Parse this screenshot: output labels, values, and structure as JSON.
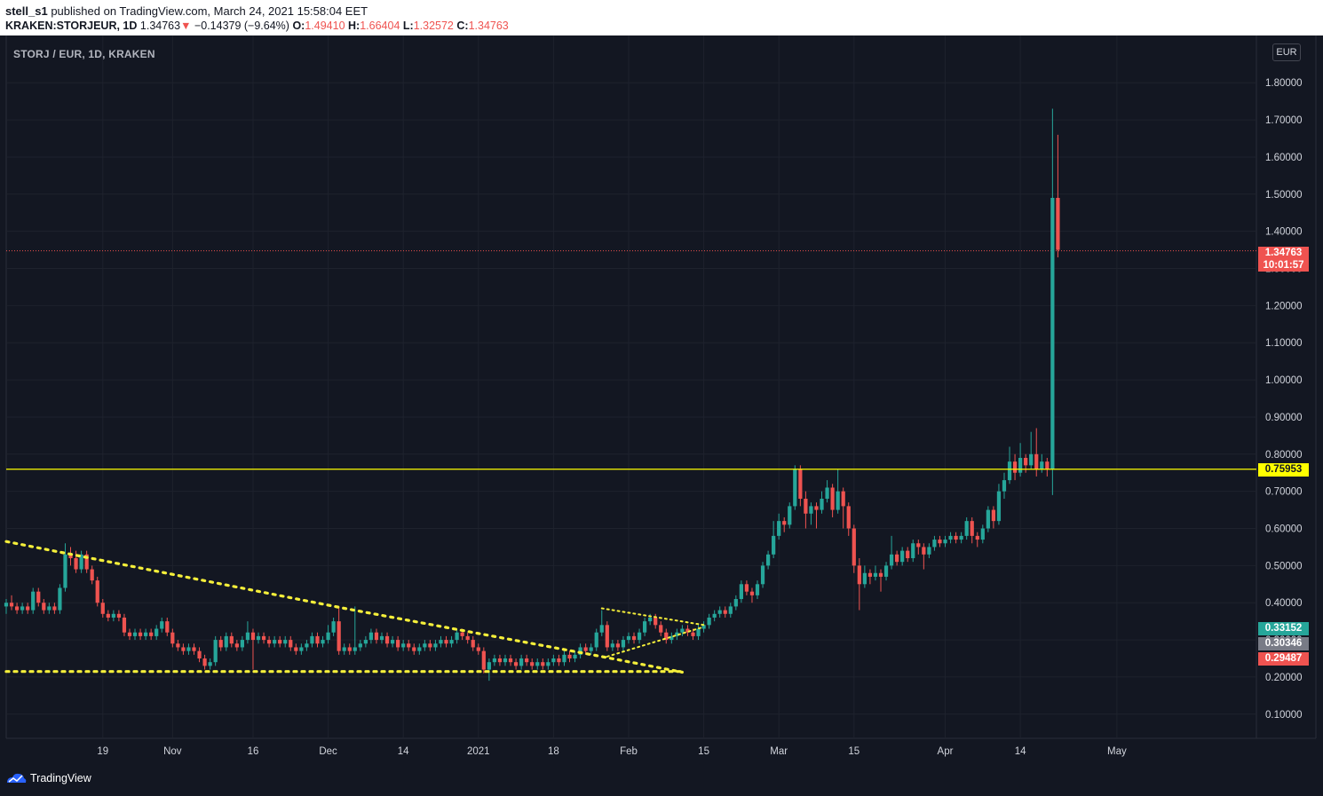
{
  "header": {
    "publisher": "stell_s1",
    "published_text": "published on TradingView.com, March 24, 2021 15:58:04 EET",
    "symbol": "KRAKEN:STORJEUR, 1D",
    "last": "1.34763",
    "change": "−0.14379 (−9.64%)",
    "o_label": "O:",
    "o_value": "1.49410",
    "h_label": "H:",
    "h_value": "1.66404",
    "l_label": "L:",
    "l_value": "1.32572",
    "c_label": "C:",
    "c_value": "1.34763"
  },
  "chart_title": "STORJ / EUR, 1D, KRAKEN",
  "currency": "EUR",
  "badges": {
    "last_price": "1.34763",
    "countdown": "10:01:57",
    "level": "0.75953",
    "price_a": "0.33152",
    "price_b": "0.30346",
    "price_c": "0.29487"
  },
  "footer": {
    "brand": "TradingView"
  },
  "colors": {
    "up": "#26a69a",
    "down": "#ef5350",
    "level": "#ffff00",
    "trendline": "#f5ef3a",
    "background": "#131722"
  },
  "chart_data": {
    "type": "candlestick",
    "y_axis": {
      "ticks": [
        "1.80000",
        "1.70000",
        "1.60000",
        "1.50000",
        "1.40000",
        "1.30000",
        "1.20000",
        "1.10000",
        "1.00000",
        "0.90000",
        "0.80000",
        "0.70000",
        "0.60000",
        "0.50000",
        "0.40000",
        "0.30000",
        "0.20000",
        "0.10000"
      ],
      "tick_values": [
        1.8,
        1.7,
        1.6,
        1.5,
        1.4,
        1.3,
        1.2,
        1.1,
        1.0,
        0.9,
        0.8,
        0.7,
        0.6,
        0.5,
        0.4,
        0.3,
        0.2,
        0.1
      ],
      "range": [
        0.035,
        1.92
      ]
    },
    "x_axis": {
      "labels": [
        "19",
        "Nov",
        "16",
        "Dec",
        "14",
        "2021",
        "18",
        "Feb",
        "15",
        "Mar",
        "15",
        "Apr",
        "14",
        "May"
      ],
      "label_day": [
        14,
        27,
        42,
        56,
        70,
        84,
        98,
        112,
        126,
        140,
        154,
        171,
        185,
        203
      ],
      "range_days": [
        -4,
        229
      ]
    },
    "horizontal_level": 0.75953,
    "current_price": 1.34763,
    "candles": [
      [
        -4,
        0.39,
        0.4,
        0.41,
        0.37
      ],
      [
        -3,
        0.4,
        0.39,
        0.42,
        0.38
      ],
      [
        -2,
        0.39,
        0.38,
        0.4,
        0.37
      ],
      [
        -1,
        0.38,
        0.39,
        0.4,
        0.37
      ],
      [
        0,
        0.39,
        0.38,
        0.4,
        0.37
      ],
      [
        1,
        0.38,
        0.43,
        0.44,
        0.37
      ],
      [
        2,
        0.43,
        0.4,
        0.44,
        0.39
      ],
      [
        3,
        0.4,
        0.38,
        0.41,
        0.37
      ],
      [
        4,
        0.38,
        0.39,
        0.4,
        0.37
      ],
      [
        5,
        0.39,
        0.38,
        0.4,
        0.37
      ],
      [
        6,
        0.38,
        0.44,
        0.45,
        0.37
      ],
      [
        7,
        0.44,
        0.53,
        0.56,
        0.43
      ],
      [
        8,
        0.53,
        0.52,
        0.55,
        0.5
      ],
      [
        9,
        0.52,
        0.49,
        0.54,
        0.48
      ],
      [
        10,
        0.49,
        0.53,
        0.54,
        0.48
      ],
      [
        11,
        0.53,
        0.49,
        0.54,
        0.48
      ],
      [
        12,
        0.49,
        0.46,
        0.5,
        0.45
      ],
      [
        13,
        0.46,
        0.4,
        0.47,
        0.39
      ],
      [
        14,
        0.4,
        0.37,
        0.41,
        0.36
      ],
      [
        15,
        0.37,
        0.36,
        0.38,
        0.35
      ],
      [
        16,
        0.36,
        0.37,
        0.38,
        0.35
      ],
      [
        17,
        0.37,
        0.36,
        0.38,
        0.35
      ],
      [
        18,
        0.36,
        0.32,
        0.37,
        0.31
      ],
      [
        19,
        0.32,
        0.31,
        0.33,
        0.3
      ],
      [
        20,
        0.31,
        0.32,
        0.33,
        0.3
      ],
      [
        21,
        0.32,
        0.31,
        0.33,
        0.3
      ],
      [
        22,
        0.31,
        0.32,
        0.33,
        0.3
      ],
      [
        23,
        0.32,
        0.31,
        0.33,
        0.3
      ],
      [
        24,
        0.31,
        0.33,
        0.34,
        0.3
      ],
      [
        25,
        0.33,
        0.35,
        0.36,
        0.32
      ],
      [
        26,
        0.35,
        0.32,
        0.36,
        0.31
      ],
      [
        27,
        0.32,
        0.29,
        0.33,
        0.28
      ],
      [
        28,
        0.29,
        0.28,
        0.3,
        0.27
      ],
      [
        29,
        0.28,
        0.27,
        0.29,
        0.26
      ],
      [
        30,
        0.27,
        0.28,
        0.29,
        0.26
      ],
      [
        31,
        0.28,
        0.27,
        0.29,
        0.26
      ],
      [
        32,
        0.27,
        0.25,
        0.28,
        0.24
      ],
      [
        33,
        0.25,
        0.23,
        0.26,
        0.22
      ],
      [
        34,
        0.23,
        0.24,
        0.25,
        0.22
      ],
      [
        35,
        0.24,
        0.3,
        0.31,
        0.23
      ],
      [
        36,
        0.3,
        0.28,
        0.31,
        0.27
      ],
      [
        37,
        0.28,
        0.31,
        0.32,
        0.27
      ],
      [
        38,
        0.31,
        0.29,
        0.32,
        0.28
      ],
      [
        39,
        0.29,
        0.28,
        0.3,
        0.27
      ],
      [
        40,
        0.28,
        0.3,
        0.31,
        0.27
      ],
      [
        41,
        0.3,
        0.32,
        0.35,
        0.29
      ],
      [
        42,
        0.32,
        0.3,
        0.33,
        0.22
      ],
      [
        43,
        0.3,
        0.31,
        0.32,
        0.29
      ],
      [
        44,
        0.31,
        0.3,
        0.32,
        0.29
      ],
      [
        45,
        0.3,
        0.29,
        0.31,
        0.28
      ],
      [
        46,
        0.29,
        0.3,
        0.31,
        0.28
      ],
      [
        47,
        0.3,
        0.29,
        0.31,
        0.28
      ],
      [
        48,
        0.29,
        0.3,
        0.31,
        0.28
      ],
      [
        49,
        0.3,
        0.28,
        0.31,
        0.27
      ],
      [
        50,
        0.28,
        0.27,
        0.29,
        0.26
      ],
      [
        51,
        0.27,
        0.28,
        0.29,
        0.26
      ],
      [
        52,
        0.28,
        0.29,
        0.3,
        0.27
      ],
      [
        53,
        0.29,
        0.31,
        0.32,
        0.28
      ],
      [
        54,
        0.31,
        0.29,
        0.32,
        0.28
      ],
      [
        55,
        0.29,
        0.3,
        0.31,
        0.28
      ],
      [
        56,
        0.3,
        0.32,
        0.34,
        0.29
      ],
      [
        57,
        0.32,
        0.35,
        0.36,
        0.31
      ],
      [
        58,
        0.35,
        0.27,
        0.39,
        0.26
      ],
      [
        59,
        0.27,
        0.28,
        0.29,
        0.26
      ],
      [
        60,
        0.28,
        0.27,
        0.29,
        0.26
      ],
      [
        61,
        0.27,
        0.28,
        0.39,
        0.26
      ],
      [
        62,
        0.28,
        0.29,
        0.3,
        0.27
      ],
      [
        63,
        0.29,
        0.3,
        0.31,
        0.28
      ],
      [
        64,
        0.3,
        0.32,
        0.33,
        0.29
      ],
      [
        65,
        0.32,
        0.3,
        0.33,
        0.29
      ],
      [
        66,
        0.3,
        0.31,
        0.32,
        0.29
      ],
      [
        67,
        0.31,
        0.29,
        0.32,
        0.28
      ],
      [
        68,
        0.29,
        0.3,
        0.31,
        0.28
      ],
      [
        69,
        0.3,
        0.28,
        0.31,
        0.27
      ],
      [
        70,
        0.28,
        0.29,
        0.3,
        0.27
      ],
      [
        71,
        0.29,
        0.28,
        0.3,
        0.27
      ],
      [
        72,
        0.28,
        0.27,
        0.29,
        0.26
      ],
      [
        73,
        0.27,
        0.28,
        0.29,
        0.26
      ],
      [
        74,
        0.28,
        0.29,
        0.3,
        0.27
      ],
      [
        75,
        0.29,
        0.28,
        0.3,
        0.27
      ],
      [
        76,
        0.28,
        0.29,
        0.3,
        0.27
      ],
      [
        77,
        0.29,
        0.3,
        0.31,
        0.28
      ],
      [
        78,
        0.3,
        0.29,
        0.31,
        0.28
      ],
      [
        79,
        0.29,
        0.3,
        0.31,
        0.28
      ],
      [
        80,
        0.3,
        0.32,
        0.33,
        0.29
      ],
      [
        81,
        0.32,
        0.31,
        0.33,
        0.3
      ],
      [
        82,
        0.31,
        0.3,
        0.32,
        0.29
      ],
      [
        83,
        0.3,
        0.28,
        0.31,
        0.27
      ],
      [
        84,
        0.28,
        0.27,
        0.29,
        0.26
      ],
      [
        85,
        0.27,
        0.22,
        0.28,
        0.21
      ],
      [
        86,
        0.22,
        0.24,
        0.25,
        0.19
      ],
      [
        87,
        0.24,
        0.25,
        0.26,
        0.23
      ],
      [
        88,
        0.25,
        0.24,
        0.26,
        0.23
      ],
      [
        89,
        0.24,
        0.25,
        0.26,
        0.23
      ],
      [
        90,
        0.25,
        0.24,
        0.26,
        0.23
      ],
      [
        91,
        0.24,
        0.23,
        0.25,
        0.22
      ],
      [
        92,
        0.23,
        0.25,
        0.26,
        0.22
      ],
      [
        93,
        0.25,
        0.24,
        0.26,
        0.23
      ],
      [
        94,
        0.24,
        0.23,
        0.25,
        0.22
      ],
      [
        95,
        0.23,
        0.24,
        0.25,
        0.22
      ],
      [
        96,
        0.24,
        0.23,
        0.25,
        0.22
      ],
      [
        97,
        0.23,
        0.24,
        0.25,
        0.22
      ],
      [
        98,
        0.24,
        0.25,
        0.26,
        0.23
      ],
      [
        99,
        0.25,
        0.24,
        0.26,
        0.23
      ],
      [
        100,
        0.24,
        0.26,
        0.27,
        0.23
      ],
      [
        101,
        0.26,
        0.25,
        0.27,
        0.24
      ],
      [
        102,
        0.25,
        0.26,
        0.27,
        0.24
      ],
      [
        103,
        0.26,
        0.28,
        0.29,
        0.25
      ],
      [
        104,
        0.28,
        0.27,
        0.29,
        0.26
      ],
      [
        105,
        0.27,
        0.28,
        0.29,
        0.26
      ],
      [
        106,
        0.28,
        0.32,
        0.33,
        0.27
      ],
      [
        107,
        0.32,
        0.34,
        0.38,
        0.31
      ],
      [
        108,
        0.34,
        0.28,
        0.35,
        0.27
      ],
      [
        109,
        0.28,
        0.29,
        0.3,
        0.27
      ],
      [
        110,
        0.29,
        0.28,
        0.3,
        0.27
      ],
      [
        111,
        0.28,
        0.3,
        0.31,
        0.27
      ],
      [
        112,
        0.3,
        0.31,
        0.32,
        0.29
      ],
      [
        113,
        0.31,
        0.3,
        0.32,
        0.29
      ],
      [
        114,
        0.3,
        0.32,
        0.33,
        0.29
      ],
      [
        115,
        0.32,
        0.35,
        0.36,
        0.31
      ],
      [
        116,
        0.35,
        0.36,
        0.37,
        0.34
      ],
      [
        117,
        0.36,
        0.34,
        0.37,
        0.33
      ],
      [
        118,
        0.34,
        0.32,
        0.35,
        0.31
      ],
      [
        119,
        0.32,
        0.3,
        0.33,
        0.29
      ],
      [
        120,
        0.3,
        0.31,
        0.32,
        0.29
      ],
      [
        121,
        0.31,
        0.32,
        0.33,
        0.3
      ],
      [
        122,
        0.32,
        0.33,
        0.34,
        0.31
      ],
      [
        123,
        0.33,
        0.32,
        0.34,
        0.31
      ],
      [
        124,
        0.32,
        0.31,
        0.33,
        0.3
      ],
      [
        125,
        0.31,
        0.33,
        0.34,
        0.3
      ],
      [
        126,
        0.33,
        0.34,
        0.35,
        0.32
      ],
      [
        127,
        0.34,
        0.36,
        0.37,
        0.33
      ],
      [
        128,
        0.36,
        0.37,
        0.38,
        0.35
      ],
      [
        129,
        0.37,
        0.38,
        0.39,
        0.36
      ],
      [
        130,
        0.38,
        0.37,
        0.39,
        0.36
      ],
      [
        131,
        0.37,
        0.39,
        0.4,
        0.36
      ],
      [
        132,
        0.39,
        0.41,
        0.42,
        0.38
      ],
      [
        133,
        0.41,
        0.45,
        0.46,
        0.4
      ],
      [
        134,
        0.45,
        0.43,
        0.46,
        0.42
      ],
      [
        135,
        0.43,
        0.42,
        0.44,
        0.4
      ],
      [
        136,
        0.42,
        0.45,
        0.46,
        0.41
      ],
      [
        137,
        0.45,
        0.5,
        0.51,
        0.44
      ],
      [
        138,
        0.5,
        0.53,
        0.54,
        0.49
      ],
      [
        139,
        0.53,
        0.58,
        0.62,
        0.52
      ],
      [
        140,
        0.58,
        0.62,
        0.64,
        0.57
      ],
      [
        141,
        0.62,
        0.61,
        0.63,
        0.59
      ],
      [
        142,
        0.61,
        0.66,
        0.67,
        0.6
      ],
      [
        143,
        0.66,
        0.76,
        0.77,
        0.65
      ],
      [
        144,
        0.76,
        0.68,
        0.77,
        0.66
      ],
      [
        145,
        0.68,
        0.64,
        0.7,
        0.6
      ],
      [
        146,
        0.64,
        0.66,
        0.67,
        0.61
      ],
      [
        147,
        0.66,
        0.65,
        0.67,
        0.6
      ],
      [
        148,
        0.65,
        0.68,
        0.7,
        0.64
      ],
      [
        149,
        0.68,
        0.71,
        0.73,
        0.67
      ],
      [
        150,
        0.71,
        0.65,
        0.72,
        0.63
      ],
      [
        151,
        0.65,
        0.7,
        0.76,
        0.64
      ],
      [
        152,
        0.7,
        0.66,
        0.71,
        0.6
      ],
      [
        153,
        0.66,
        0.6,
        0.67,
        0.58
      ],
      [
        154,
        0.6,
        0.5,
        0.61,
        0.48
      ],
      [
        155,
        0.5,
        0.45,
        0.52,
        0.38
      ],
      [
        156,
        0.45,
        0.48,
        0.5,
        0.44
      ],
      [
        157,
        0.48,
        0.47,
        0.49,
        0.45
      ],
      [
        158,
        0.47,
        0.48,
        0.5,
        0.46
      ],
      [
        159,
        0.48,
        0.47,
        0.49,
        0.43
      ],
      [
        160,
        0.47,
        0.5,
        0.51,
        0.46
      ],
      [
        161,
        0.5,
        0.53,
        0.58,
        0.49
      ],
      [
        162,
        0.53,
        0.51,
        0.54,
        0.5
      ],
      [
        163,
        0.51,
        0.54,
        0.55,
        0.5
      ],
      [
        164,
        0.54,
        0.52,
        0.55,
        0.51
      ],
      [
        165,
        0.52,
        0.56,
        0.57,
        0.51
      ],
      [
        166,
        0.56,
        0.55,
        0.57,
        0.53
      ],
      [
        167,
        0.55,
        0.53,
        0.56,
        0.49
      ],
      [
        168,
        0.53,
        0.55,
        0.56,
        0.52
      ],
      [
        169,
        0.55,
        0.57,
        0.58,
        0.54
      ],
      [
        170,
        0.57,
        0.56,
        0.58,
        0.55
      ],
      [
        171,
        0.56,
        0.57,
        0.58,
        0.55
      ],
      [
        172,
        0.57,
        0.58,
        0.59,
        0.56
      ],
      [
        173,
        0.58,
        0.57,
        0.59,
        0.56
      ],
      [
        174,
        0.57,
        0.58,
        0.59,
        0.56
      ],
      [
        175,
        0.58,
        0.62,
        0.63,
        0.57
      ],
      [
        176,
        0.62,
        0.58,
        0.63,
        0.56
      ],
      [
        177,
        0.58,
        0.57,
        0.59,
        0.55
      ],
      [
        178,
        0.57,
        0.6,
        0.61,
        0.56
      ],
      [
        179,
        0.6,
        0.65,
        0.66,
        0.59
      ],
      [
        180,
        0.65,
        0.62,
        0.66,
        0.6
      ],
      [
        181,
        0.62,
        0.7,
        0.72,
        0.61
      ],
      [
        182,
        0.7,
        0.73,
        0.75,
        0.68
      ],
      [
        183,
        0.73,
        0.78,
        0.82,
        0.72
      ],
      [
        184,
        0.78,
        0.75,
        0.8,
        0.73
      ],
      [
        185,
        0.75,
        0.79,
        0.83,
        0.74
      ],
      [
        186,
        0.79,
        0.77,
        0.8,
        0.75
      ],
      [
        187,
        0.77,
        0.8,
        0.86,
        0.76
      ],
      [
        188,
        0.8,
        0.76,
        0.87,
        0.74
      ],
      [
        189,
        0.76,
        0.78,
        0.8,
        0.75
      ],
      [
        190,
        0.78,
        0.76,
        0.79,
        0.74
      ],
      [
        191,
        0.76,
        1.49,
        1.73,
        0.69
      ],
      [
        192,
        1.49,
        1.35,
        1.66,
        1.33
      ]
    ],
    "trendlines": [
      {
        "name": "descending",
        "points": [
          [
            -4,
            0.565
          ],
          [
            59,
            0.385
          ],
          [
            107,
            0.255
          ],
          [
            122,
            0.213
          ]
        ]
      },
      {
        "name": "support",
        "points": [
          [
            -4,
            0.215
          ],
          [
            122,
            0.215
          ]
        ]
      },
      {
        "name": "pennant-upper",
        "points": [
          [
            107,
            0.385
          ],
          [
            126,
            0.34
          ]
        ]
      },
      {
        "name": "pennant-lower",
        "points": [
          [
            108,
            0.255
          ],
          [
            126,
            0.335
          ]
        ]
      }
    ]
  }
}
